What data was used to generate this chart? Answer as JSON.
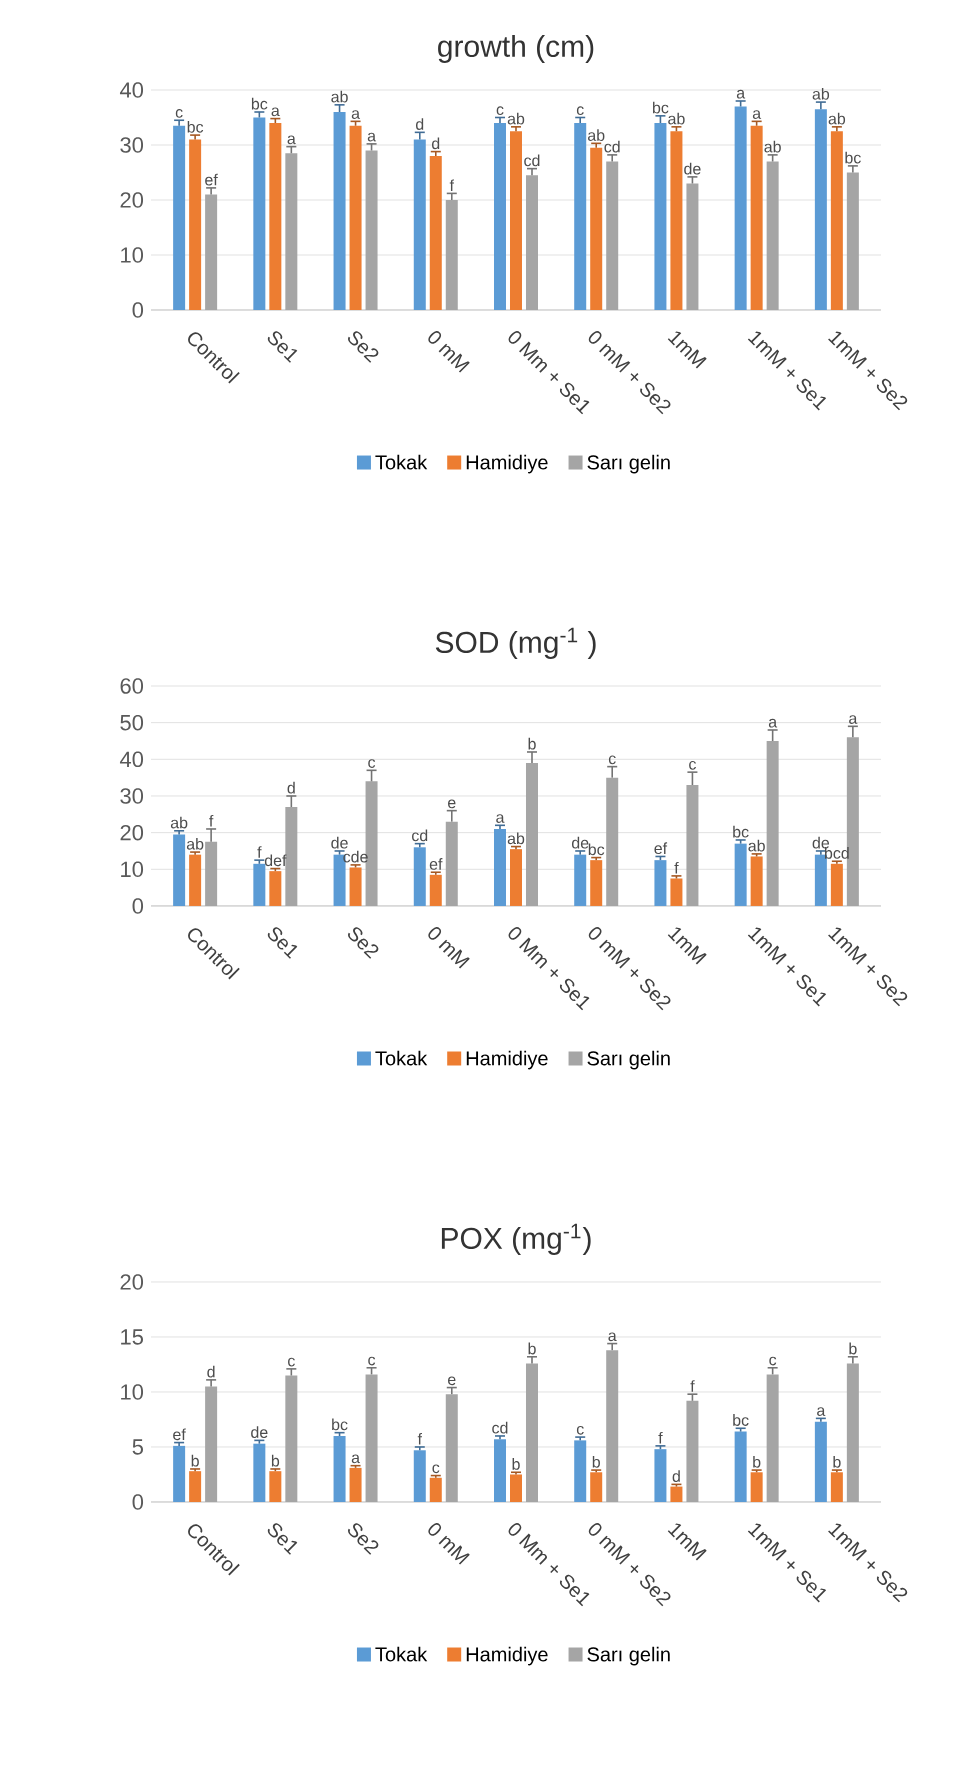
{
  "chart_data": [
    {
      "type": "bar",
      "title": "growth (cm)",
      "categories": [
        "Control",
        "Se1",
        "Se2",
        "0 mM",
        "0 Mm + Se1",
        "0 mM + Se2",
        "1mM",
        "1mM + Se1",
        "1mM + Se2"
      ],
      "ylim": [
        0,
        40
      ],
      "yticks": [
        0,
        10,
        20,
        30,
        40
      ],
      "grid": "y",
      "legend": "bottom",
      "series": [
        {
          "name": "Tokak",
          "color": "#5b9bd5",
          "values": [
            33.5,
            35,
            36,
            31,
            34,
            34,
            34,
            37,
            36.5
          ],
          "errors": [
            1,
            1,
            1.3,
            1.3,
            1,
            1,
            1.3,
            1,
            1.3
          ]
        },
        {
          "name": "Hamidiye",
          "color": "#ed7d31",
          "values": [
            31,
            34,
            33.5,
            28,
            32.5,
            29.5,
            32.5,
            33.5,
            32.5
          ],
          "errors": [
            0.8,
            0.8,
            0.8,
            0.8,
            0.8,
            0.8,
            0.8,
            0.8,
            0.8
          ]
        },
        {
          "name": "Sarı gelin",
          "color": "#a5a5a5",
          "values": [
            21,
            28.5,
            29,
            20,
            24.5,
            27,
            23,
            27,
            25
          ],
          "errors": [
            1.2,
            1.2,
            1.2,
            1.2,
            1.2,
            1.2,
            1.2,
            1.2,
            1.2
          ]
        }
      ],
      "annotations": [
        "c",
        "bc",
        "ab",
        "d",
        "c",
        "c",
        "bc",
        "a",
        "ab",
        "bc",
        "a",
        "a",
        "d",
        "ab",
        "ab",
        "ab",
        "a",
        "ab",
        "ef",
        "a",
        "a",
        "f",
        "cd",
        "cd",
        "de",
        "ab",
        "bc"
      ]
    },
    {
      "type": "bar",
      "title": "SOD (mg$^{-1}$ )",
      "categories": [
        "Control",
        "Se1",
        "Se2",
        "0 mM",
        "0 Mm + Se1",
        "0 mM + Se2",
        "1mM",
        "1mM + Se1",
        "1mM + Se2"
      ],
      "ylim": [
        0,
        60
      ],
      "yticks": [
        0,
        10,
        20,
        30,
        40,
        50,
        60
      ],
      "grid": "y",
      "legend": "bottom",
      "series": [
        {
          "name": "Tokak",
          "color": "#5b9bd5",
          "values": [
            19.5,
            11.5,
            14,
            16,
            21,
            14,
            12.5,
            17,
            14
          ],
          "errors": [
            1,
            1,
            1,
            1,
            1,
            1,
            1,
            1,
            1
          ]
        },
        {
          "name": "Hamidiye",
          "color": "#ed7d31",
          "values": [
            14,
            9.5,
            10.5,
            8.5,
            15.5,
            12.5,
            7.5,
            13.5,
            11.5
          ],
          "errors": [
            0.7,
            0.7,
            0.7,
            0.7,
            0.7,
            0.7,
            0.7,
            0.7,
            0.7
          ]
        },
        {
          "name": "Sarı gelin",
          "color": "#a5a5a5",
          "values": [
            17.5,
            27,
            34,
            23,
            39,
            35,
            33,
            45,
            46
          ],
          "errors": [
            3.5,
            3,
            3,
            3,
            3,
            3,
            3.5,
            3,
            3
          ]
        }
      ],
      "annotations": [
        "ab",
        "f",
        "de",
        "cd",
        "a",
        "de",
        "ef",
        "bc",
        "de",
        "ab",
        "def",
        "cde",
        "ef",
        "ab",
        "bc",
        "f",
        "ab",
        "bcd",
        "f",
        "d",
        "c",
        "e",
        "b",
        "c",
        "c",
        "a",
        "a"
      ]
    },
    {
      "type": "bar",
      "title": "POX (mg$^{-1}$)",
      "categories": [
        "Control",
        "Se1",
        "Se2",
        "0 mM",
        "0 Mm + Se1",
        "0 mM + Se2",
        "1mM",
        "1mM + Se1",
        "1mM + Se2"
      ],
      "ylim": [
        0,
        20
      ],
      "yticks": [
        0,
        5,
        10,
        15,
        20
      ],
      "grid": "y",
      "legend": "bottom",
      "series": [
        {
          "name": "Tokak",
          "color": "#5b9bd5",
          "values": [
            5.1,
            5.3,
            6,
            4.7,
            5.7,
            5.6,
            4.8,
            6.4,
            7.3
          ],
          "errors": [
            0.3,
            0.3,
            0.3,
            0.3,
            0.3,
            0.3,
            0.3,
            0.3,
            0.3
          ]
        },
        {
          "name": "Hamidiye",
          "color": "#ed7d31",
          "values": [
            2.8,
            2.8,
            3.1,
            2.2,
            2.5,
            2.7,
            1.4,
            2.7,
            2.7
          ],
          "errors": [
            0.2,
            0.2,
            0.2,
            0.2,
            0.2,
            0.2,
            0.2,
            0.2,
            0.2
          ]
        },
        {
          "name": "Sarı gelin",
          "color": "#a5a5a5",
          "values": [
            10.5,
            11.5,
            11.6,
            9.8,
            12.6,
            13.8,
            9.2,
            11.6,
            12.6
          ],
          "errors": [
            0.6,
            0.6,
            0.6,
            0.6,
            0.6,
            0.6,
            0.6,
            0.6,
            0.6
          ]
        }
      ],
      "annotations": [
        "ef",
        "de",
        "bc",
        "f",
        "cd",
        "c",
        "f",
        "bc",
        "a",
        "b",
        "b",
        "a",
        "c",
        "b",
        "b",
        "d",
        "b",
        "b",
        "d",
        "c",
        "c",
        "e",
        "b",
        "a",
        "f",
        "c",
        "b"
      ]
    }
  ]
}
